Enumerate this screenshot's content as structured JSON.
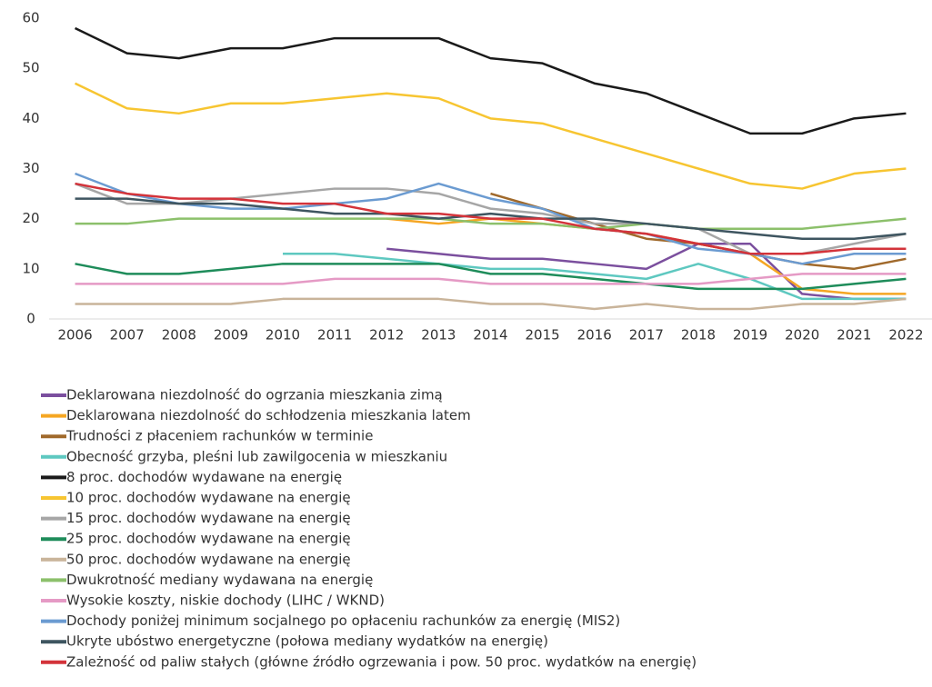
{
  "chart_data": {
    "type": "line",
    "categories": [
      "2006",
      "2007",
      "2008",
      "2009",
      "2010",
      "2011",
      "2012",
      "2013",
      "2014",
      "2015",
      "2016",
      "2017",
      "2018",
      "2019",
      "2020",
      "2021",
      "2022"
    ],
    "ylim": [
      0,
      60
    ],
    "yticks": [
      0,
      10,
      20,
      30,
      40,
      50,
      60
    ],
    "grid": false,
    "legend": "bottom",
    "series": [
      {
        "name": "Deklarowana niezdolność do ogrzania mieszkania zimą",
        "color": "#7b4f9e",
        "values": [
          null,
          null,
          null,
          null,
          null,
          null,
          14,
          13,
          12,
          12,
          11,
          10,
          15,
          15,
          5,
          4,
          4
        ]
      },
      {
        "name": "Deklarowana niezdolność do schłodzenia mieszkania latem",
        "color": "#f5a623",
        "values": [
          null,
          null,
          null,
          null,
          null,
          null,
          20,
          19,
          20,
          19,
          18,
          17,
          15,
          13,
          6,
          5,
          5
        ]
      },
      {
        "name": "Trudności z płaceniem rachunków w terminie",
        "color": "#a0692b",
        "values": [
          null,
          null,
          null,
          null,
          null,
          null,
          null,
          null,
          25,
          22,
          19,
          16,
          15,
          13,
          11,
          10,
          12
        ]
      },
      {
        "name": "Obecność grzyba, pleśni lub zawilgocenia w mieszkaniu",
        "color": "#5ec8c0",
        "values": [
          null,
          null,
          null,
          null,
          13,
          13,
          12,
          11,
          10,
          10,
          9,
          8,
          11,
          8,
          4,
          4,
          4
        ]
      },
      {
        "name": "8 proc. dochodów wydawane na energię",
        "color": "#1a1a1a",
        "values": [
          58,
          53,
          52,
          54,
          54,
          56,
          56,
          56,
          52,
          51,
          47,
          45,
          41,
          37,
          37,
          40,
          41
        ]
      },
      {
        "name": "10 proc. dochodów wydawane na energię",
        "color": "#f7c531",
        "values": [
          47,
          42,
          41,
          43,
          43,
          44,
          45,
          44,
          40,
          39,
          36,
          33,
          30,
          27,
          26,
          29,
          30
        ]
      },
      {
        "name": "15 proc. dochodów wydawane na energię",
        "color": "#a6a6a6",
        "values": [
          27,
          23,
          23,
          24,
          25,
          26,
          26,
          25,
          22,
          21,
          19,
          19,
          18,
          13,
          13,
          15,
          17
        ]
      },
      {
        "name": "25 proc. dochodów wydawane na energię",
        "color": "#1e8c5a",
        "values": [
          11,
          9,
          9,
          10,
          11,
          11,
          11,
          11,
          9,
          9,
          8,
          7,
          6,
          6,
          6,
          7,
          8
        ]
      },
      {
        "name": "50 proc. dochodów wydawane na energię",
        "color": "#c9b49a",
        "values": [
          3,
          3,
          3,
          3,
          4,
          4,
          4,
          4,
          3,
          3,
          2,
          3,
          2,
          2,
          3,
          3,
          4
        ]
      },
      {
        "name": "Dwukrotność mediany wydawana na energię",
        "color": "#8cc06b",
        "values": [
          19,
          19,
          20,
          20,
          20,
          20,
          20,
          20,
          19,
          19,
          18,
          19,
          18,
          18,
          18,
          19,
          20
        ]
      },
      {
        "name": "Wysokie koszty, niskie dochody (LIHC / WKND)",
        "color": "#e59ac5",
        "values": [
          7,
          7,
          7,
          7,
          7,
          8,
          8,
          8,
          7,
          7,
          7,
          7,
          7,
          8,
          9,
          9,
          9
        ]
      },
      {
        "name": "Dochody poniżej minimum socjalnego po opłaceniu rachunków za energię (MIS2)",
        "color": "#6b9bd1",
        "values": [
          29,
          25,
          23,
          22,
          22,
          23,
          24,
          27,
          24,
          22,
          18,
          17,
          14,
          13,
          11,
          13,
          13
        ]
      },
      {
        "name": "Ukryte ubóstwo energetyczne (połowa mediany wydatków na energię)",
        "color": "#3e5560",
        "values": [
          24,
          24,
          23,
          23,
          22,
          21,
          21,
          20,
          21,
          20,
          20,
          19,
          18,
          17,
          16,
          16,
          17
        ]
      },
      {
        "name": "Zależność od paliw stałych (główne źródło ogrzewania i pow. 50 proc. wydatków na energię)",
        "color": "#d3333a",
        "values": [
          27,
          25,
          24,
          24,
          23,
          23,
          21,
          21,
          20,
          20,
          18,
          17,
          15,
          13,
          13,
          14,
          14
        ]
      }
    ]
  }
}
